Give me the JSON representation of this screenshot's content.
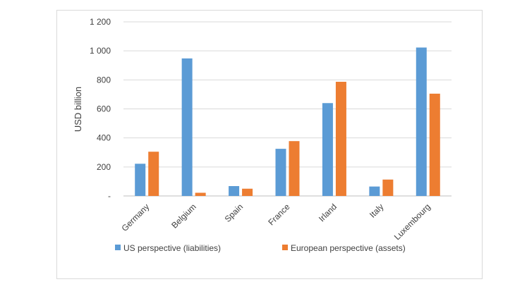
{
  "chart_data": {
    "type": "bar",
    "title": "",
    "xlabel": "",
    "ylabel": "USD billion",
    "ylim": [
      0,
      1200
    ],
    "yticks": [
      {
        "value": 0,
        "label": "-"
      },
      {
        "value": 200,
        "label": "200"
      },
      {
        "value": 400,
        "label": "400"
      },
      {
        "value": 600,
        "label": "600"
      },
      {
        "value": 800,
        "label": "800"
      },
      {
        "value": 1000,
        "label": "1 000"
      },
      {
        "value": 1200,
        "label": "1 200"
      }
    ],
    "categories": [
      "Germany",
      "Belgium",
      "Spain",
      "France",
      "Irland",
      "Italy",
      "Luxembourg"
    ],
    "series": [
      {
        "name": "US perspective (liabilities)",
        "color": "#5b9bd5",
        "values": [
          222,
          948,
          68,
          325,
          640,
          65,
          1023
        ]
      },
      {
        "name": "European perspective (assets)",
        "color": "#ed7d31",
        "values": [
          305,
          22,
          50,
          378,
          787,
          113,
          705
        ]
      }
    ],
    "grid": true,
    "legend": "bottom"
  }
}
